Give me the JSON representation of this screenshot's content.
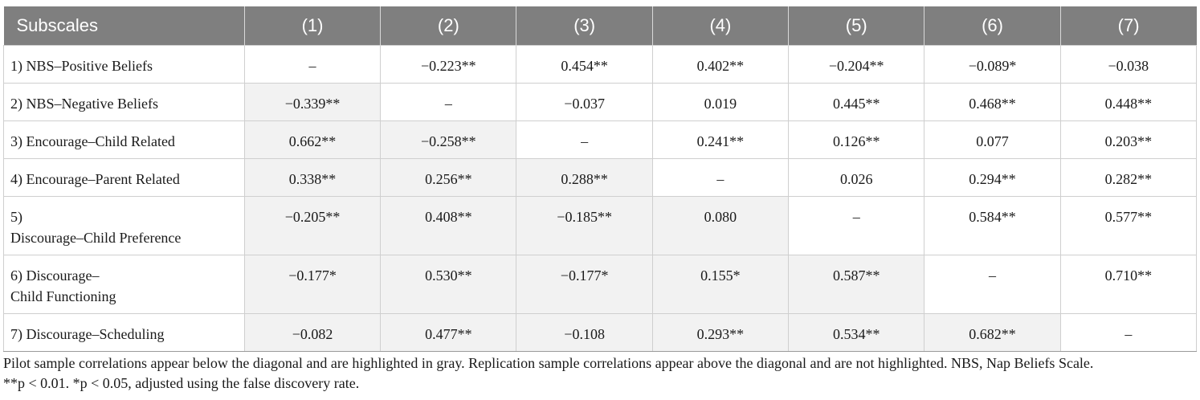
{
  "table": {
    "headers": [
      "Subscales",
      "(1)",
      "(2)",
      "(3)",
      "(4)",
      "(5)",
      "(6)",
      "(7)"
    ],
    "rows": [
      {
        "label": [
          "1) NBS–Positive Beliefs"
        ],
        "cells": [
          "–",
          "−0.223**",
          "0.454**",
          "0.402**",
          "−0.204**",
          "−0.089*",
          "−0.038"
        ],
        "shaded": [
          false,
          false,
          false,
          false,
          false,
          false,
          false
        ]
      },
      {
        "label": [
          "2) NBS–Negative Beliefs"
        ],
        "cells": [
          "−0.339**",
          "–",
          "−0.037",
          "0.019",
          "0.445**",
          "0.468**",
          "0.448**"
        ],
        "shaded": [
          true,
          false,
          false,
          false,
          false,
          false,
          false
        ]
      },
      {
        "label": [
          "3) Encourage–Child Related"
        ],
        "cells": [
          "0.662**",
          "−0.258**",
          "–",
          "0.241**",
          "0.126**",
          "0.077",
          "0.203**"
        ],
        "shaded": [
          true,
          true,
          false,
          false,
          false,
          false,
          false
        ]
      },
      {
        "label": [
          "4) Encourage–Parent Related"
        ],
        "cells": [
          "0.338**",
          "0.256**",
          "0.288**",
          "–",
          "0.026",
          "0.294**",
          "0.282**"
        ],
        "shaded": [
          true,
          true,
          true,
          false,
          false,
          false,
          false
        ]
      },
      {
        "label": [
          "5)",
          "Discourage–Child Preference"
        ],
        "cells": [
          "−0.205**",
          "0.408**",
          "−0.185**",
          "0.080",
          "–",
          "0.584**",
          "0.577**"
        ],
        "shaded": [
          true,
          true,
          true,
          true,
          false,
          false,
          false
        ]
      },
      {
        "label": [
          "6) Discourage–",
          "Child Functioning"
        ],
        "cells": [
          "−0.177*",
          "0.530**",
          "−0.177*",
          "0.155*",
          "0.587**",
          "–",
          "0.710**"
        ],
        "shaded": [
          true,
          true,
          true,
          true,
          true,
          false,
          false
        ]
      },
      {
        "label": [
          "7) Discourage–Scheduling"
        ],
        "cells": [
          "−0.082",
          "0.477**",
          "−0.108",
          "0.293**",
          "0.534**",
          "0.682**",
          "–"
        ],
        "shaded": [
          true,
          true,
          true,
          true,
          true,
          true,
          false
        ]
      }
    ]
  },
  "footnote": {
    "line1": "Pilot sample correlations appear below the diagonal and are highlighted in gray. Replication sample correlations appear above the diagonal and are not highlighted. NBS, Nap Beliefs Scale.",
    "line2": "**p < 0.01. *p < 0.05, adjusted using the false discovery rate."
  },
  "colors": {
    "header_bg": "#7f7f7f",
    "shade_bg": "#f2f2f2",
    "border": "#cfcfcf"
  }
}
